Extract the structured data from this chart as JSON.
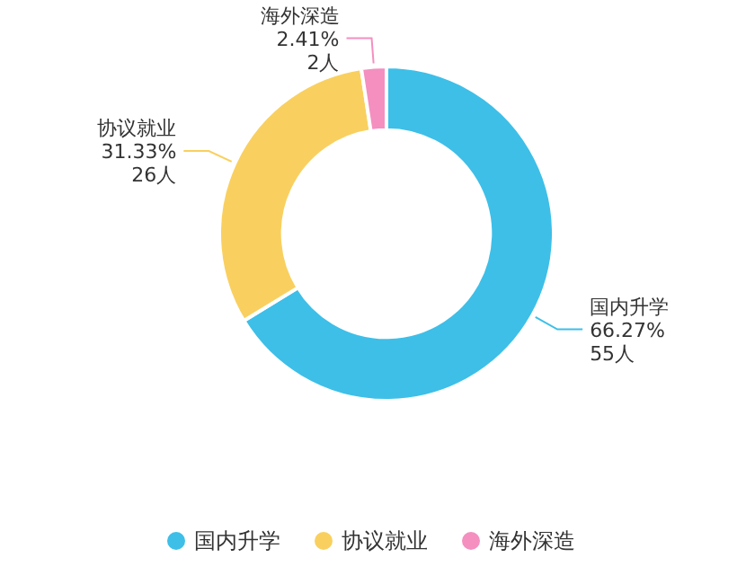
{
  "chart_data": {
    "type": "donut",
    "categories": [
      "国内升学",
      "协议就业",
      "海外深造"
    ],
    "values": [
      55,
      26,
      2
    ],
    "colors": [
      "#3dbfe8",
      "#f9d05f",
      "#f48fc0"
    ],
    "value_labels": [
      "66.27%\n55人",
      "31.33%\n26人",
      "2.41%\n2人"
    ],
    "legend": "bottom"
  }
}
